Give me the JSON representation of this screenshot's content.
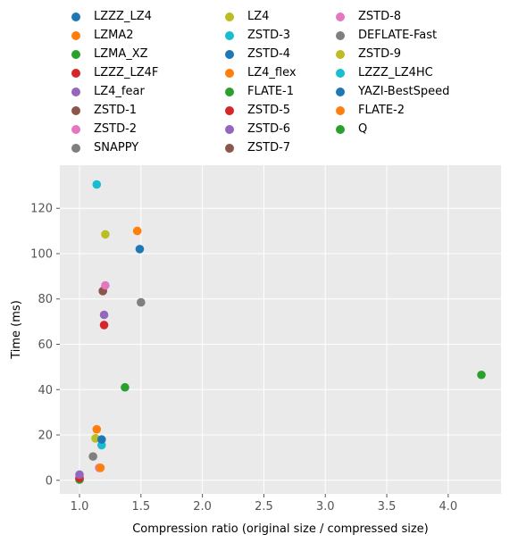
{
  "chart_data": {
    "type": "scatter",
    "title": "",
    "xlabel": "Compression ratio (original size / compressed size)",
    "ylabel": "Time (ms)",
    "xlim": [
      0.84,
      4.43
    ],
    "ylim": [
      -6,
      139
    ],
    "xticks": [
      1.0,
      1.5,
      2.0,
      2.5,
      3.0,
      3.5,
      4.0
    ],
    "xtick_labels": [
      "1.0",
      "1.5",
      "2.0",
      "2.5",
      "3.0",
      "3.5",
      "4.0"
    ],
    "yticks": [
      0,
      20,
      40,
      60,
      80,
      100,
      120
    ],
    "ytick_labels": [
      "0",
      "20",
      "40",
      "60",
      "80",
      "100",
      "120"
    ],
    "grid": true,
    "legend_position": "top, above plot, 3 columns",
    "series": [
      {
        "name": "LZZZ_LZ4",
        "color": "#1f77b4",
        "x": 1.0,
        "y": 0.5
      },
      {
        "name": "LZMA2",
        "color": "#ff7f0e",
        "x": 1.47,
        "y": 110
      },
      {
        "name": "LZMA_XZ",
        "color": "#2ca02c",
        "x": 1.0,
        "y": 0.3
      },
      {
        "name": "LZZZ_LZ4F",
        "color": "#d62728",
        "x": 1.0,
        "y": 1.0
      },
      {
        "name": "LZ4_fear",
        "color": "#9467bd",
        "x": 1.0,
        "y": 2.5
      },
      {
        "name": "ZSTD-1",
        "color": "#8c564b",
        "x": 1.19,
        "y": 83.5
      },
      {
        "name": "ZSTD-2",
        "color": "#e377c2",
        "x": 1.16,
        "y": 5.5
      },
      {
        "name": "SNAPPY",
        "color": "#7f7f7f",
        "x": 1.11,
        "y": 10.5
      },
      {
        "name": "LZ4",
        "color": "#bcbd22",
        "x": 1.13,
        "y": 18.5
      },
      {
        "name": "ZSTD-3",
        "color": "#17becf",
        "x": 1.14,
        "y": 130.5
      },
      {
        "name": "ZSTD-4",
        "color": "#1f77b4",
        "x": 1.49,
        "y": 102
      },
      {
        "name": "LZ4_flex",
        "color": "#ff7f0e",
        "x": 1.14,
        "y": 22.5
      },
      {
        "name": "FLATE-1",
        "color": "#2ca02c",
        "x": 1.37,
        "y": 41
      },
      {
        "name": "ZSTD-5",
        "color": "#d62728",
        "x": 1.2,
        "y": 68.5
      },
      {
        "name": "ZSTD-6",
        "color": "#9467bd",
        "x": 1.2,
        "y": 73
      },
      {
        "name": "ZSTD-7",
        "color": "#8c564b",
        "x": 1.19,
        "y": 83.5
      },
      {
        "name": "ZSTD-8",
        "color": "#e377c2",
        "x": 1.21,
        "y": 86
      },
      {
        "name": "DEFLATE-Fast",
        "color": "#7f7f7f",
        "x": 1.5,
        "y": 78.5
      },
      {
        "name": "ZSTD-9",
        "color": "#bcbd22",
        "x": 1.21,
        "y": 108.5
      },
      {
        "name": "LZZZ_LZ4HC",
        "color": "#17becf",
        "x": 1.18,
        "y": 15.5
      },
      {
        "name": "YAZI-BestSpeed",
        "color": "#1f77b4",
        "x": 1.18,
        "y": 18
      },
      {
        "name": "FLATE-2",
        "color": "#ff7f0e",
        "x": 1.17,
        "y": 5.5
      },
      {
        "name": "Q",
        "color": "#2ca02c",
        "x": 4.27,
        "y": 46.5
      }
    ]
  }
}
